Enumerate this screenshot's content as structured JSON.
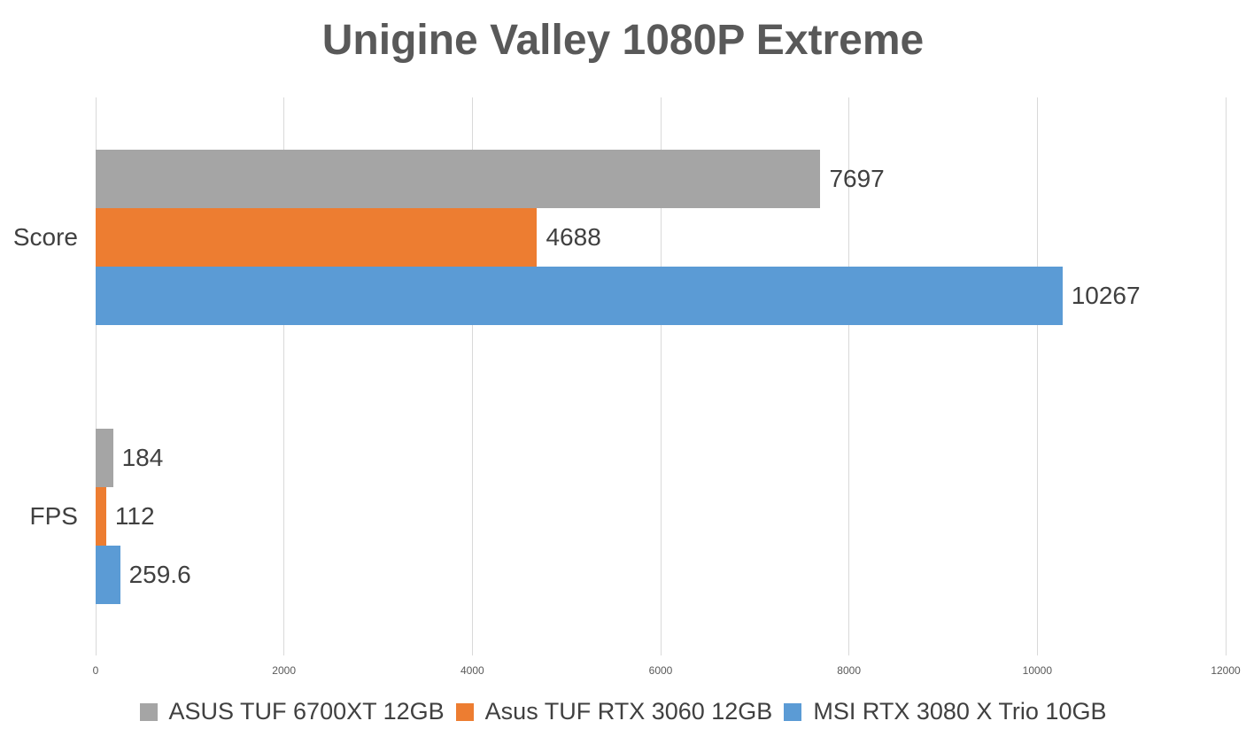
{
  "chart_data": {
    "type": "bar",
    "orientation": "horizontal",
    "title": "Unigine Valley 1080P Extreme",
    "categories": [
      "Score",
      "FPS"
    ],
    "series": [
      {
        "name": "ASUS TUF 6700XT 12GB",
        "color": "#A5A5A5",
        "values": [
          7697,
          184
        ],
        "labels": [
          "7697",
          "184"
        ]
      },
      {
        "name": "Asus TUF RTX 3060 12GB",
        "color": "#ED7D31",
        "values": [
          4688,
          112
        ],
        "labels": [
          "4688",
          "112"
        ]
      },
      {
        "name": "MSI RTX 3080 X Trio 10GB",
        "color": "#5B9BD5",
        "values": [
          10267,
          259.6
        ],
        "labels": [
          "10267",
          "259.6"
        ]
      }
    ],
    "xlim": [
      0,
      12000
    ],
    "x_ticks": [
      0,
      2000,
      4000,
      6000,
      8000,
      10000,
      12000
    ],
    "x_tick_labels": [
      "0",
      "2000",
      "4000",
      "6000",
      "8000",
      "10000",
      "12000"
    ],
    "grid": true,
    "legend_position": "bottom",
    "colors": {
      "background": "#FFFFFF",
      "gridline": "#D9D9D9",
      "title_text": "#595959",
      "label_text": "#404040",
      "tick_text": "#595959"
    }
  }
}
